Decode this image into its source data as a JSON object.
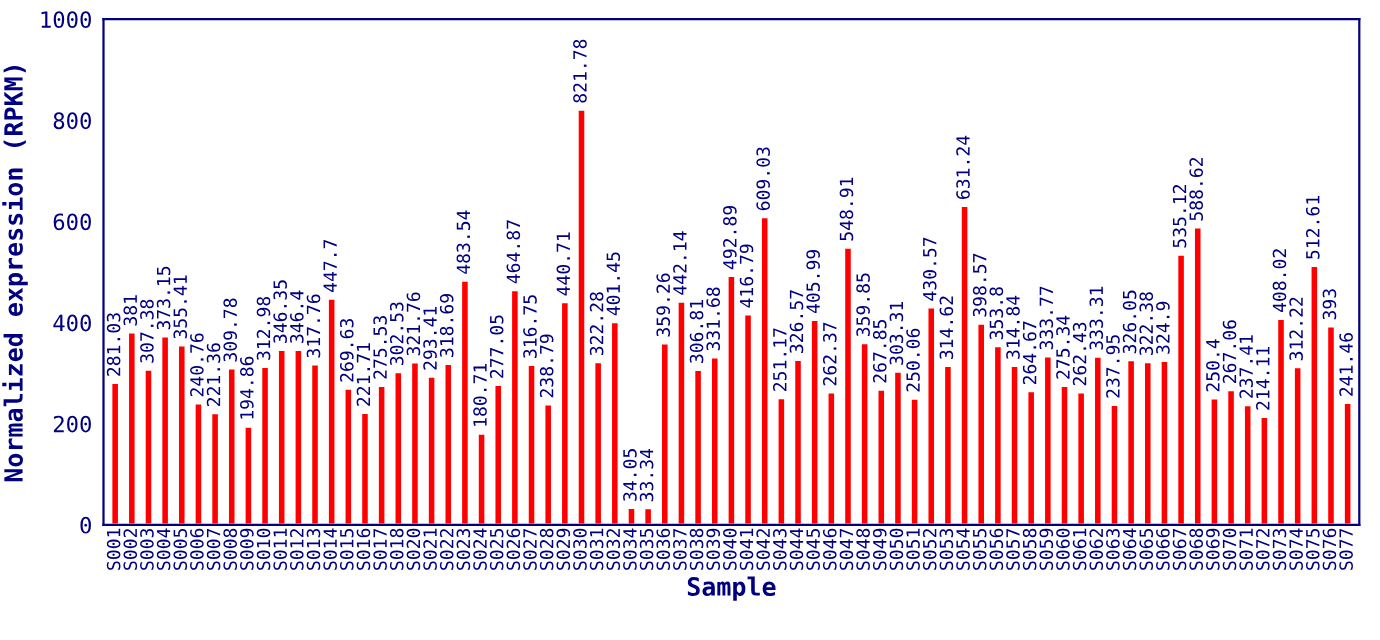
{
  "chart_data": {
    "type": "bar",
    "xlabel": "Sample",
    "ylabel": "Normalized expression (RPKM)",
    "categories": [
      "S001",
      "S002",
      "S003",
      "S004",
      "S005",
      "S006",
      "S007",
      "S008",
      "S009",
      "S010",
      "S011",
      "S012",
      "S013",
      "S014",
      "S015",
      "S016",
      "S017",
      "S018",
      "S020",
      "S021",
      "S022",
      "S023",
      "S024",
      "S025",
      "S026",
      "S027",
      "S028",
      "S029",
      "S030",
      "S031",
      "S032",
      "S034",
      "S035",
      "S036",
      "S037",
      "S038",
      "S039",
      "S040",
      "S041",
      "S042",
      "S043",
      "S044",
      "S045",
      "S046",
      "S047",
      "S048",
      "S049",
      "S050",
      "S051",
      "S052",
      "S053",
      "S054",
      "S055",
      "S056",
      "S057",
      "S058",
      "S059",
      "S060",
      "S061",
      "S062",
      "S063",
      "S064",
      "S065",
      "S066",
      "S067",
      "S068",
      "S069",
      "S070",
      "S071",
      "S072",
      "S073",
      "S074",
      "S075",
      "S076",
      "S077"
    ],
    "values": [
      281.03,
      381,
      307.38,
      373.15,
      355.41,
      240.76,
      221.36,
      309.78,
      194.86,
      312.98,
      346.35,
      346.4,
      317.76,
      447.7,
      269.63,
      221.71,
      275.53,
      302.53,
      321.76,
      293.41,
      318.69,
      483.54,
      180.71,
      277.05,
      464.87,
      316.75,
      238.79,
      440.71,
      821.78,
      322.28,
      401.45,
      34.05,
      33.34,
      359.26,
      442.14,
      306.81,
      331.68,
      492.89,
      416.79,
      609.03,
      251.17,
      326.57,
      405.99,
      262.37,
      548.91,
      359.85,
      267.85,
      303.31,
      250.06,
      430.57,
      314.62,
      631.24,
      398.57,
      353.8,
      314.84,
      264.67,
      333.77,
      275.34,
      262.43,
      333.31,
      237.95,
      326.05,
      322.38,
      324.9,
      535.12,
      588.62,
      250.4,
      267.06,
      237.41,
      214.11,
      408.02,
      312.22,
      512.61,
      393,
      241.46
    ],
    "color": "#ff0000",
    "data_labels": true,
    "ylim": [
      0,
      1000
    ],
    "yticks": [
      0,
      200,
      400,
      600,
      800,
      1000
    ],
    "grid": false
  }
}
